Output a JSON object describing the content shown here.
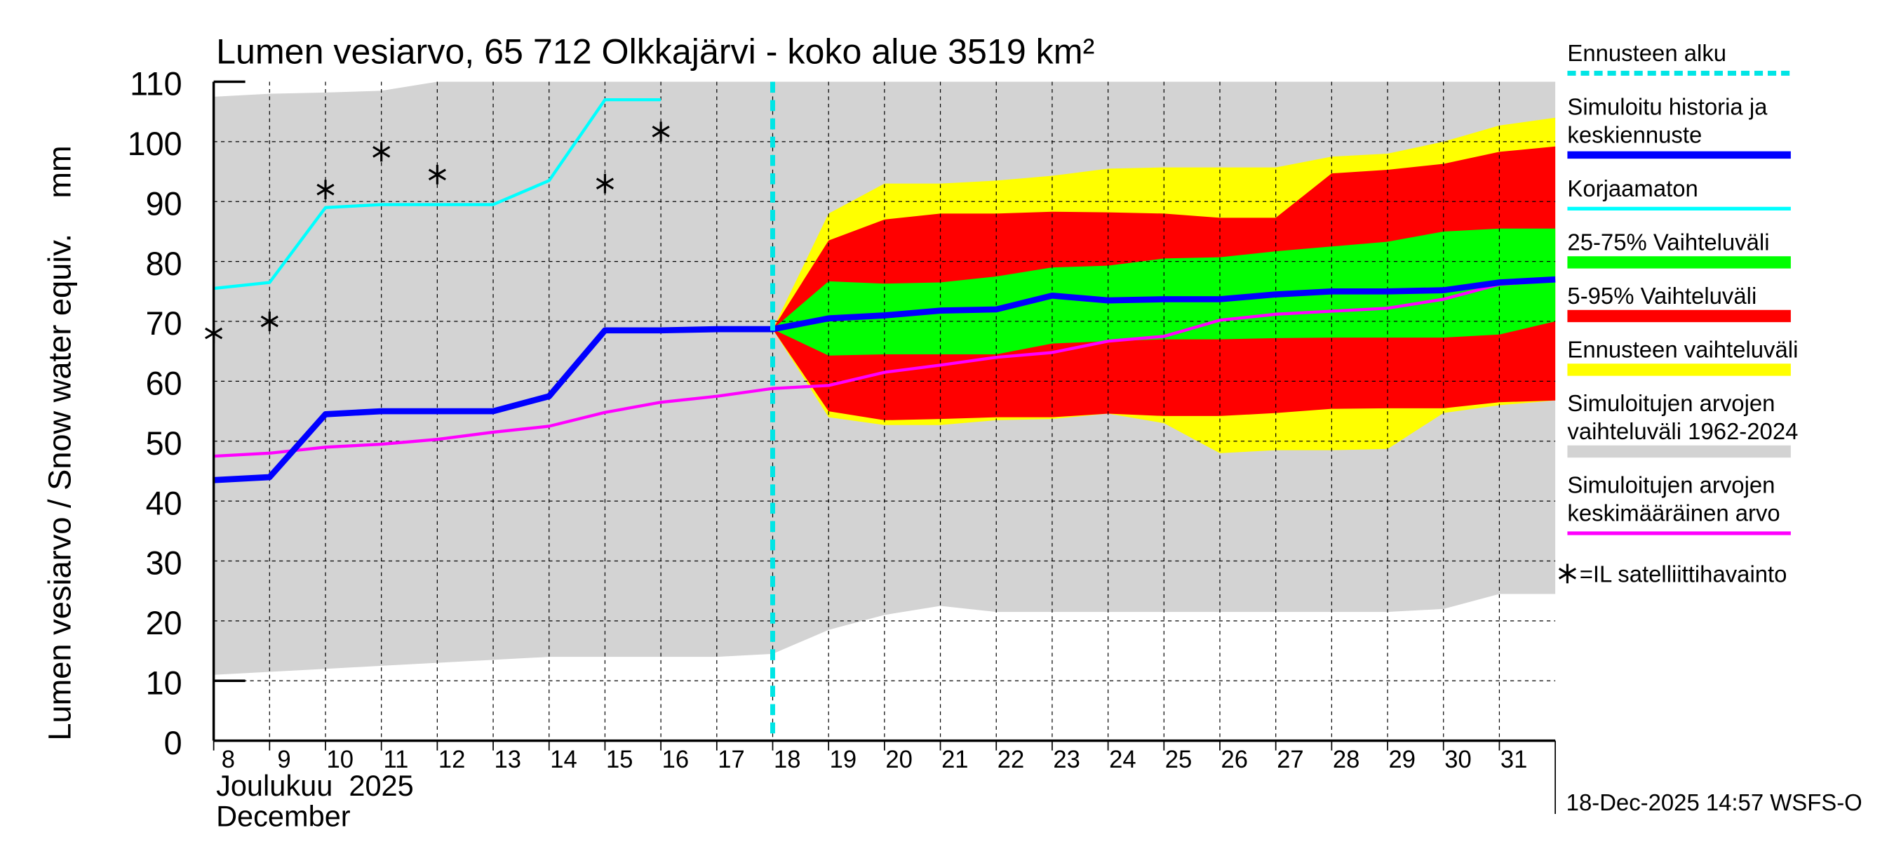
{
  "chart_data": {
    "type": "area",
    "title": "Lumen vesiarvo, 65 712 Olkkajärvi - koko alue 3519 km²",
    "ylabel": "Lumen vesiarvo / Snow water equiv.    mm",
    "xlabel_line1": "Joulukuu  2025",
    "xlabel_line2": "December",
    "ylim": [
      0,
      110
    ],
    "xlim": [
      8,
      32
    ],
    "yticks": [
      0,
      10,
      20,
      30,
      40,
      50,
      60,
      70,
      80,
      90,
      100,
      110
    ],
    "xticks": [
      8,
      9,
      10,
      11,
      12,
      13,
      14,
      15,
      16,
      17,
      18,
      19,
      20,
      21,
      22,
      23,
      24,
      25,
      26,
      27,
      28,
      29,
      30,
      31
    ],
    "grid": true,
    "forecast_start": 18,
    "timestamp": "18-Dec-2025 14:57 WSFS-O",
    "series": {
      "historical_range": {
        "name": "Simuloitujen arvojen vaihteluväli 1962-2024",
        "color": "#d3d3d3",
        "x": [
          8,
          9,
          10,
          11,
          12,
          13,
          14,
          15,
          16,
          17,
          18,
          19,
          20,
          21,
          22,
          23,
          24,
          25,
          26,
          27,
          28,
          29,
          30,
          31,
          32
        ],
        "upper": [
          107.5,
          108,
          108.2,
          108.5,
          110,
          110,
          110,
          110,
          110,
          110,
          110,
          110,
          110,
          110,
          110,
          110,
          110,
          110,
          110,
          110,
          110,
          110,
          110,
          110,
          110
        ],
        "lower": [
          11,
          11.5,
          12,
          12.5,
          13,
          13.5,
          14,
          14,
          14,
          14,
          14.5,
          18.5,
          21,
          22.5,
          21.5,
          21.5,
          21.5,
          21.5,
          21.5,
          21.5,
          21.5,
          21.5,
          22,
          24.5,
          24.5
        ]
      },
      "forecast_range": {
        "name": "Ennusteen vaihteluväli",
        "color": "#ffff00",
        "x": [
          18,
          19,
          20,
          21,
          22,
          23,
          24,
          25,
          26,
          27,
          28,
          29,
          30,
          31,
          32
        ],
        "upper": [
          68.7,
          88,
          93,
          93,
          93.5,
          94.3,
          95.5,
          95.7,
          95.7,
          95.7,
          97.5,
          98,
          100,
          102.7,
          104
        ],
        "lower": [
          68.7,
          54,
          52.7,
          52.7,
          53.5,
          53.7,
          54.6,
          53,
          48,
          48.5,
          48.5,
          48.7,
          54.7,
          56,
          56.8
        ]
      },
      "range_5_95": {
        "name": "5-95% Vaihteluväli",
        "color": "#ff0000",
        "x": [
          18,
          19,
          20,
          21,
          22,
          23,
          24,
          25,
          26,
          27,
          28,
          29,
          30,
          31,
          32
        ],
        "upper": [
          68.7,
          83.5,
          87,
          88,
          88,
          88.3,
          88.2,
          88,
          87.3,
          87.3,
          94.7,
          95.3,
          96.3,
          98.3,
          99.2
        ],
        "lower": [
          68.7,
          55,
          53.5,
          53.7,
          54,
          54,
          54.6,
          54.2,
          54.2,
          54.7,
          55.4,
          55.5,
          55.5,
          56.5,
          56.8
        ]
      },
      "range_25_75": {
        "name": "25-75% Vaihteluväli",
        "color": "#00ff00",
        "x": [
          18,
          19,
          20,
          21,
          22,
          23,
          24,
          25,
          26,
          27,
          28,
          29,
          30,
          31,
          32
        ],
        "upper": [
          68.7,
          76.7,
          76.3,
          76.5,
          77.5,
          79,
          79.3,
          80.5,
          80.7,
          81.7,
          82.5,
          83.3,
          85,
          85.5,
          85.5
        ],
        "lower": [
          68.7,
          64.3,
          64.5,
          64.5,
          64.5,
          66.3,
          66.7,
          67,
          67,
          67.2,
          67.3,
          67.3,
          67.3,
          67.8,
          70
        ]
      },
      "mean": {
        "name": "Simuloitujen arvojen keskimääräinen arvo",
        "color": "#ff00ff",
        "x": [
          8,
          9,
          10,
          11,
          12,
          13,
          14,
          15,
          16,
          17,
          18,
          19,
          20,
          21,
          22,
          23,
          24,
          25,
          26,
          27,
          28,
          29,
          30,
          31,
          32
        ],
        "y": [
          47.5,
          48,
          49,
          49.5,
          50.3,
          51.5,
          52.5,
          54.8,
          56.5,
          57.5,
          58.8,
          59.3,
          61.5,
          62.7,
          64,
          64.8,
          66.7,
          67.5,
          70.2,
          71.2,
          71.7,
          72.2,
          73.7,
          76.2,
          76.8
        ]
      },
      "uncorrected": {
        "name": "Korjaamaton",
        "color": "#00ffff",
        "x": [
          8,
          9,
          10,
          11,
          12,
          13,
          14,
          15,
          16
        ],
        "y": [
          75.5,
          76.5,
          89,
          89.5,
          89.5,
          89.5,
          93.5,
          107,
          107
        ]
      },
      "simulated": {
        "name": "Simuloitu historia ja keskiennuste",
        "color": "#0000ff",
        "x": [
          8,
          9,
          10,
          11,
          12,
          13,
          14,
          15,
          16,
          17,
          18,
          19,
          20,
          21,
          22,
          23,
          24,
          25,
          26,
          27,
          28,
          29,
          30,
          31,
          32
        ],
        "y": [
          43.5,
          44,
          54.5,
          55,
          55,
          55,
          57.5,
          68.5,
          68.5,
          68.7,
          68.7,
          70.5,
          71,
          71.8,
          72,
          74.3,
          73.5,
          73.7,
          73.7,
          74.5,
          75,
          75,
          75.2,
          76.5,
          77
        ]
      },
      "satellite": {
        "name": "=IL satelliittihavainto",
        "x": [
          8,
          9,
          10,
          11,
          12,
          15,
          16
        ],
        "y": [
          68,
          70,
          92,
          98.3,
          94.5,
          93,
          101.7
        ]
      }
    },
    "legend": [
      {
        "key": "forecast_start",
        "lines": [
          "Ennusteen alku"
        ],
        "color": "#00e5e5",
        "style": "dashed"
      },
      {
        "key": "simulated",
        "lines": [
          "Simuloitu historia ja",
          "keskiennuste"
        ],
        "color": "#0000ff",
        "style": "thick"
      },
      {
        "key": "uncorrected",
        "lines": [
          "Korjaamaton"
        ],
        "color": "#00ffff",
        "style": "line"
      },
      {
        "key": "range_25_75",
        "lines": [
          "25-75% Vaihteluväli"
        ],
        "color": "#00ff00",
        "style": "band"
      },
      {
        "key": "range_5_95",
        "lines": [
          "5-95% Vaihteluväli"
        ],
        "color": "#ff0000",
        "style": "band"
      },
      {
        "key": "forecast_range",
        "lines": [
          "Ennusteen vaihteluväli"
        ],
        "color": "#ffff00",
        "style": "band"
      },
      {
        "key": "historical_range",
        "lines": [
          "Simuloitujen arvojen",
          "vaihteluväli 1962-2024"
        ],
        "color": "#d3d3d3",
        "style": "band"
      },
      {
        "key": "mean",
        "lines": [
          "Simuloitujen arvojen",
          "keskimääräinen arvo"
        ],
        "color": "#ff00ff",
        "style": "line"
      }
    ],
    "legend_star_label": "=IL satelliittihavainto",
    "legend_placement": "right"
  }
}
